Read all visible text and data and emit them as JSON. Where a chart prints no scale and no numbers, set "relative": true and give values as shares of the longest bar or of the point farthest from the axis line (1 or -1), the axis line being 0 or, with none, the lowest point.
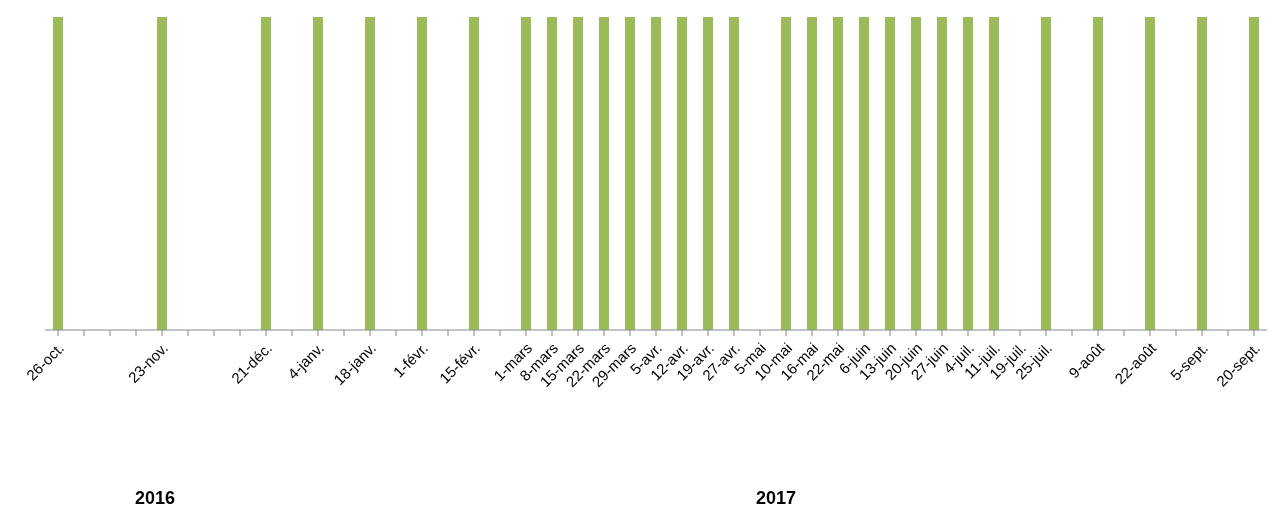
{
  "chart_data": {
    "type": "bar",
    "relative": true,
    "color": "#9bbb59",
    "grid": false,
    "legend": false,
    "categories": [
      "26-oct.",
      null,
      null,
      null,
      "23-nov.",
      null,
      null,
      null,
      "21-déc.",
      null,
      "4-janv.",
      null,
      "18-janv.",
      null,
      "1-févr.",
      null,
      "15-févr.",
      null,
      "1-mars",
      "8-mars",
      "15-mars",
      "22-mars",
      "29-mars",
      "5-avr.",
      "12-avr.",
      "19-avr.",
      "27-avr.",
      "5-mai",
      "10-mai",
      "16-mai",
      "22-mai",
      "6-juin",
      "13-juin",
      "20-juin",
      "27-juin",
      "4-juil.",
      "11-juil.",
      "19-juil.",
      "25-juil.",
      null,
      "9-août",
      null,
      "22-août",
      null,
      "5-sept.",
      null,
      "20-sept."
    ],
    "values": [
      1,
      null,
      null,
      null,
      1,
      null,
      null,
      null,
      1,
      null,
      1,
      null,
      1,
      null,
      1,
      null,
      1,
      null,
      1,
      1,
      1,
      1,
      1,
      1,
      1,
      1,
      1,
      null,
      1,
      1,
      1,
      1,
      1,
      1,
      1,
      1,
      1,
      null,
      1,
      null,
      1,
      null,
      1,
      null,
      1,
      null,
      1
    ],
    "annotations": [
      "2016",
      "2017"
    ]
  }
}
